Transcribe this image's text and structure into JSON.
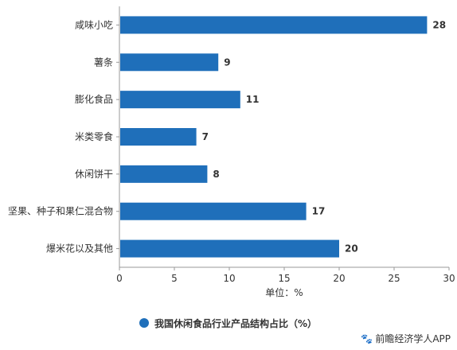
{
  "chart_data": {
    "type": "bar",
    "orientation": "horizontal",
    "categories": [
      "咸味小吃",
      "薯条",
      "膨化食品",
      "米类零食",
      "休闲饼干",
      "坚果、种子和果仁混合物",
      "爆米花以及其他"
    ],
    "series": [
      {
        "name": "我国休闲食品行业产品结构占比（%）",
        "values": [
          28,
          9,
          11,
          7,
          8,
          17,
          20
        ]
      }
    ],
    "xlim": [
      0,
      30
    ],
    "xticks": [
      0,
      5,
      10,
      15,
      20,
      25,
      30
    ],
    "xlabel": "单位：%",
    "legend_position": "bottom",
    "grid": false,
    "bar_color": "#1f6fba"
  },
  "source": "前瞻经济学人APP",
  "source_icon": "paw-icon"
}
